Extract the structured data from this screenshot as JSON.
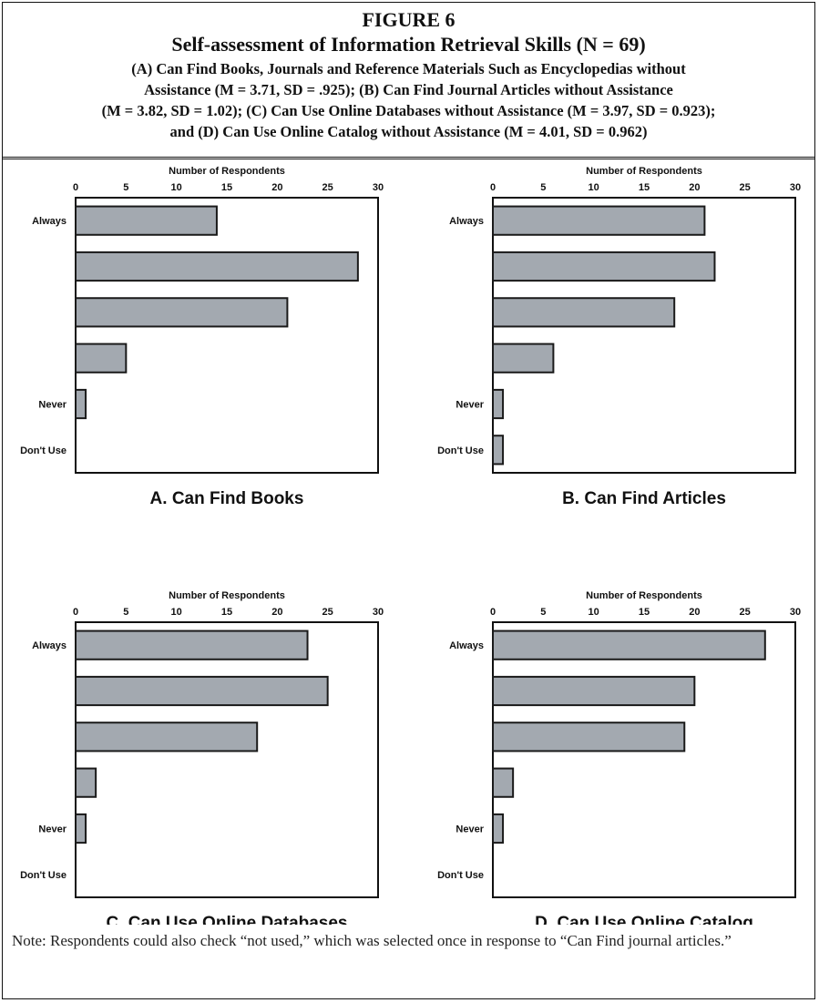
{
  "figure": {
    "label": "FIGURE 6",
    "title": "Self-assessment of Information Retrieval Skills (N = 69)",
    "caption_lines": [
      "(A) Can Find Books, Journals and Reference Materials Such as Encyclopedias without",
      "Assistance (M = 3.71, SD = .925);  (B) Can Find Journal Articles without Assistance",
      "(M = 3.82, SD = 1.02); (C) Can Use Online Databases without Assistance (M = 3.97, SD = 0.923);",
      "and (D) Can Use Online Catalog without Assistance (M = 4.01, SD = 0.962)"
    ]
  },
  "chart_data": [
    {
      "type": "bar",
      "orientation": "horizontal",
      "title": "A. Can Find Books",
      "xlabel": "Number of Respondents",
      "xlim": [
        0,
        30
      ],
      "xticks": [
        0,
        5,
        10,
        15,
        20,
        25,
        30
      ],
      "categories": [
        "Always",
        "",
        "",
        "",
        "Never",
        "Don't Use"
      ],
      "values": [
        14,
        28,
        21,
        5,
        1,
        0
      ]
    },
    {
      "type": "bar",
      "orientation": "horizontal",
      "title": "B. Can Find Articles",
      "xlabel": "Number of Respondents",
      "xlim": [
        0,
        30
      ],
      "xticks": [
        0,
        5,
        10,
        15,
        20,
        25,
        30
      ],
      "categories": [
        "Always",
        "",
        "",
        "",
        "Never",
        "Don't Use"
      ],
      "values": [
        21,
        22,
        18,
        6,
        1,
        1
      ]
    },
    {
      "type": "bar",
      "orientation": "horizontal",
      "title": "C. Can Use Online Databases",
      "xlabel": "Number of Respondents",
      "xlim": [
        0,
        30
      ],
      "xticks": [
        0,
        5,
        10,
        15,
        20,
        25,
        30
      ],
      "categories": [
        "Always",
        "",
        "",
        "",
        "Never",
        "Don't Use"
      ],
      "values": [
        23,
        25,
        18,
        2,
        1,
        0
      ]
    },
    {
      "type": "bar",
      "orientation": "horizontal",
      "title": "D. Can Use Online Catalog",
      "xlabel": "Number of Respondents",
      "xlim": [
        0,
        30
      ],
      "xticks": [
        0,
        5,
        10,
        15,
        20,
        25,
        30
      ],
      "categories": [
        "Always",
        "",
        "",
        "",
        "Never",
        "Don't Use"
      ],
      "values": [
        27,
        20,
        19,
        2,
        1,
        0
      ]
    }
  ],
  "colors": {
    "bar_fill": "#a3a9b0",
    "bar_stroke": "#1a1a1a",
    "axis": "#111111"
  },
  "note": "Note: Respondents could also check “not used,” which was selected once in response to “Can Find journal articles.”"
}
